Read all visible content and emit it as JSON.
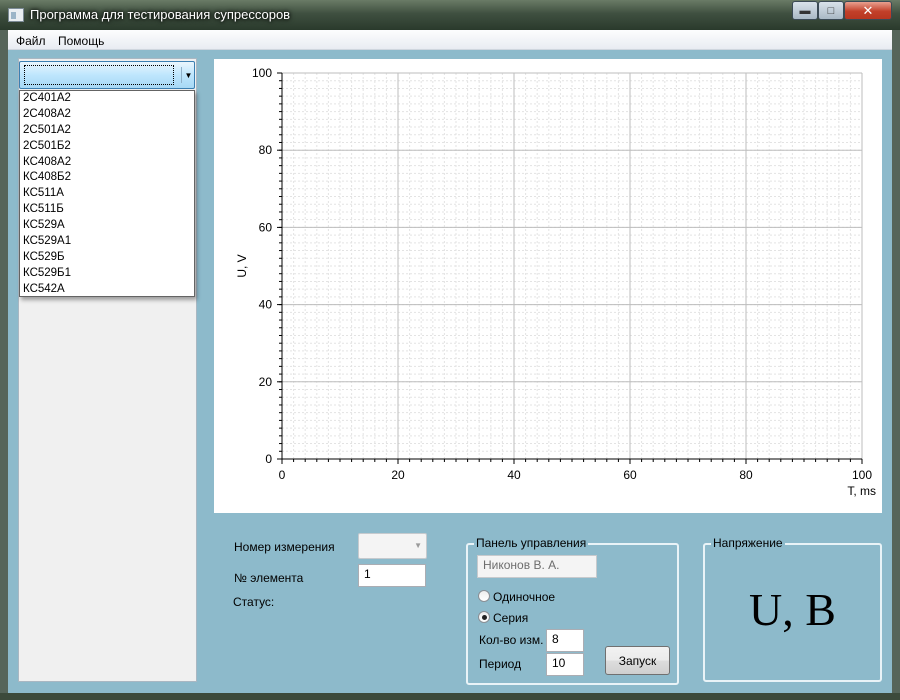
{
  "window": {
    "title": "Программа для тестирования супрессоров"
  },
  "menu": {
    "file": "Файл",
    "help": "Помощь"
  },
  "device_list": {
    "selected": "",
    "items": [
      "2С401А2",
      "2С408А2",
      "2С501А2",
      "2С501Б2",
      "КС408А2",
      "КС408Б2",
      "КС511А",
      "КС511Б",
      "КС529А",
      "КС529А1",
      "КС529Б",
      "КС529Б1",
      "КС542А"
    ]
  },
  "chart_data": {
    "type": "line",
    "xlabel": "T, ms",
    "ylabel": "U, V",
    "xlim": [
      0,
      100
    ],
    "ylim": [
      0,
      100
    ],
    "x_ticks": [
      0,
      20,
      40,
      60,
      80,
      100
    ],
    "y_ticks": [
      0,
      20,
      40,
      60,
      80,
      100
    ],
    "series": [],
    "grid": true
  },
  "measurement": {
    "number_label": "Номер измерения",
    "number_value": "",
    "element_label": "№ элемента",
    "element_value": "1",
    "status_label": "Статус:"
  },
  "control_panel": {
    "title": "Панель управления",
    "operator": "Никонов В. А.",
    "mode_single": "Одиночное",
    "mode_series": "Серия",
    "count_label": "Кол-во изм.",
    "count_value": "8",
    "period_label": "Период",
    "period_value": "10",
    "start_label": "Запуск"
  },
  "voltage_panel": {
    "title": "Напряжение",
    "value": "U, В"
  }
}
